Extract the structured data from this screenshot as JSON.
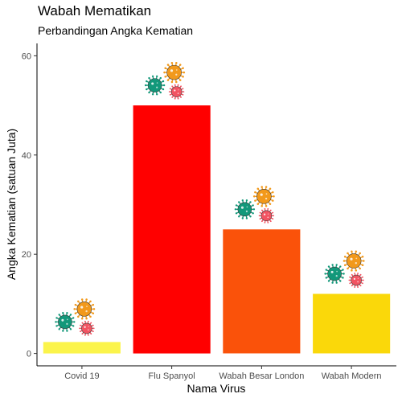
{
  "chart_data": {
    "type": "bar",
    "title": "Wabah Mematikan",
    "subtitle": "Perbandingan Angka Kematian",
    "xlabel": "Nama Virus",
    "ylabel": "Angka Kematian (satuan Juta)",
    "categories": [
      "Covid 19",
      "Flu Spanyol",
      "Wabah Besar London",
      "Wabah Modern"
    ],
    "values": [
      2.3,
      50,
      25,
      12
    ],
    "bar_colors": [
      "#FBF44B",
      "#FF0000",
      "#FA520A",
      "#FAD80A"
    ],
    "ylim": [
      -2.5,
      62.5
    ],
    "yticks": [
      0,
      20,
      40,
      60
    ],
    "grid": false,
    "legend": "none",
    "icon_colors": [
      "#12987A",
      "#F2991B",
      "#F25462"
    ]
  }
}
